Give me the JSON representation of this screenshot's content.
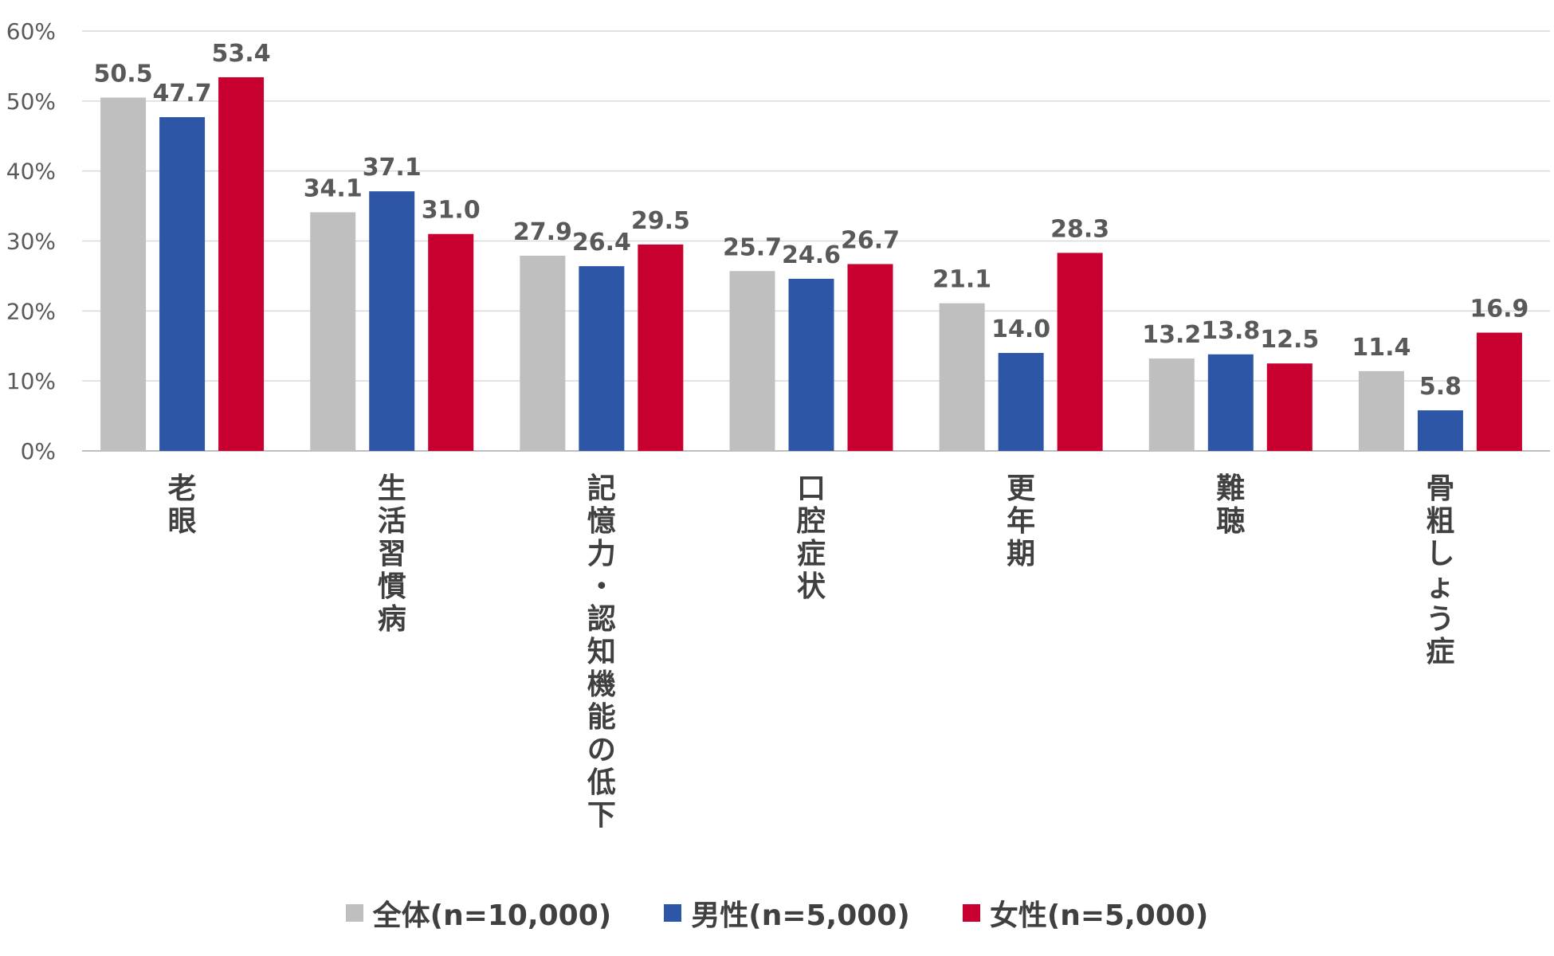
{
  "chart_data": {
    "type": "bar",
    "categories": [
      "老眼",
      "生活習慣病",
      "記憶力・認知機能の低下",
      "口腔症状",
      "更年期",
      "難聴",
      "骨粗しょう症"
    ],
    "series": [
      {
        "name": "全体(n=10,000)",
        "color": "#BFBFBF",
        "values": [
          50.5,
          34.1,
          27.9,
          25.7,
          21.1,
          13.2,
          11.4
        ],
        "labels": [
          "50.5",
          "34.1",
          "27.9",
          "25.7",
          "21.1",
          "13.2",
          "11.4"
        ]
      },
      {
        "name": "男性(n=5,000)",
        "color": "#2E56A6",
        "values": [
          47.7,
          37.1,
          26.4,
          24.6,
          14.0,
          13.8,
          5.8
        ],
        "labels": [
          "47.7",
          "37.1",
          "26.4",
          "24.6",
          "14.0",
          "13.8",
          "5.8"
        ]
      },
      {
        "name": "女性(n=5,000)",
        "color": "#C8002F",
        "values": [
          53.4,
          31.0,
          29.5,
          26.7,
          28.3,
          12.5,
          16.9
        ],
        "labels": [
          "53.4",
          "31.0",
          "29.5",
          "26.7",
          "28.3",
          "12.5",
          "16.9"
        ]
      }
    ],
    "y_ticks": [
      "0%",
      "10%",
      "20%",
      "30%",
      "40%",
      "50%",
      "60%"
    ],
    "ylim": [
      0,
      60
    ],
    "grid": true,
    "legend_position": "bottom",
    "title": "",
    "xlabel": "",
    "ylabel": ""
  },
  "colors": {
    "grid": "#D9D9D9",
    "axis": "#BFBFBF"
  }
}
